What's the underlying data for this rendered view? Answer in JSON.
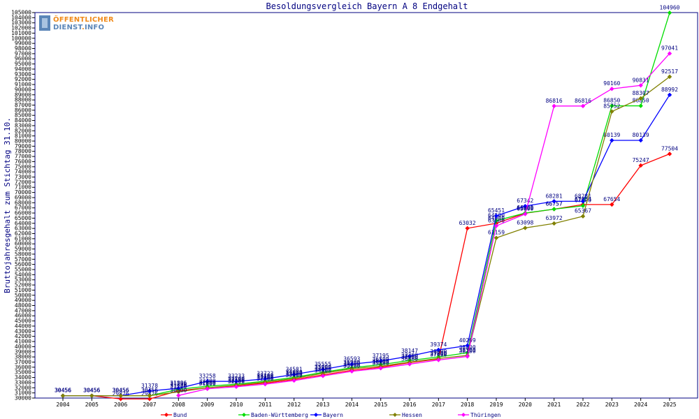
{
  "chart_data": {
    "type": "line",
    "title": "Besoldungsvergleich Bayern A 8 Endgehalt",
    "ylabel": "Bruttojahresgehalt zum Stichtag 31.10.",
    "xlabel": "",
    "ylim": [
      30000,
      105000
    ],
    "ytick_step": 1000,
    "categories": [
      "2004",
      "2005",
      "2006",
      "2007",
      "2008",
      "2009",
      "2010",
      "2011",
      "2012",
      "2013",
      "2014",
      "2015",
      "2016",
      "2017",
      "2018",
      "2019",
      "2020",
      "2021",
      "2022",
      "2023",
      "2024",
      "2025"
    ],
    "legend_position": "bottom",
    "series": [
      {
        "name": "Bund",
        "color": "#ff0000",
        "values": [
          30456,
          30456,
          29826,
          29826,
          31420,
          32000,
          32400,
          32900,
          33600,
          34500,
          35400,
          36000,
          36900,
          37600,
          63032,
          64000,
          65960,
          66757,
          67654,
          67654,
          75247,
          77504
        ],
        "labels": [
          "30456",
          "30456",
          "29826",
          "29826",
          "31420",
          "32000",
          "32400",
          "32900",
          "33600",
          "34500",
          "35400",
          "36000",
          "36900",
          "37600",
          "63032",
          "64000",
          "65960",
          "66757",
          "67654",
          "67654",
          "75247",
          "77504"
        ]
      },
      {
        "name": "Baden-Württemberg",
        "color": "#00dd00",
        "values": [
          30456,
          30456,
          30456,
          30456,
          31700,
          32300,
          32700,
          33300,
          34000,
          35000,
          35900,
          36500,
          37300,
          38000,
          38800,
          64500,
          66000,
          66757,
          67400,
          86850,
          86850,
          104960
        ],
        "labels": [
          "30456",
          "30456",
          "30456",
          "30456",
          "31700",
          "32300",
          "32700",
          "33300",
          "34000",
          "35000",
          "35900",
          "36500",
          "37300",
          "38000",
          "38800",
          "64500",
          "66000",
          "66757",
          "67400",
          "86850",
          "86850",
          "104960"
        ]
      },
      {
        "name": "Bayern",
        "color": "#0000ff",
        "values": [
          30456,
          30456,
          30456,
          31378,
          31896,
          33258,
          33233,
          33723,
          34581,
          35555,
          36593,
          37195,
          38147,
          39374,
          40209,
          65451,
          67342,
          68281,
          68281,
          80139,
          80139,
          88992
        ],
        "labels": [
          "30456",
          "30456",
          "30456",
          "31378",
          "31896",
          "33258",
          "33233",
          "33723",
          "34581",
          "35555",
          "36593",
          "37195",
          "38147",
          "39374",
          "40209",
          "65451",
          "67342",
          "68281",
          "68281",
          "80139",
          "80139",
          "88992"
        ]
      },
      {
        "name": "Hessen",
        "color": "#808000",
        "values": [
          30456,
          30456,
          30456,
          30456,
          31200,
          32000,
          32500,
          33100,
          33800,
          34800,
          35700,
          36200,
          37000,
          37700,
          38300,
          61159,
          63098,
          63972,
          65367,
          85752,
          88307,
          92517
        ],
        "labels": [
          "30456",
          "30456",
          "30456",
          "30456",
          "31200",
          "32000",
          "32500",
          "33100",
          "33800",
          "34800",
          "35700",
          "36200",
          "37000",
          "37700",
          "38300",
          "61159",
          "63098",
          "63972",
          "65367",
          "85752",
          "88307",
          "92517"
        ]
      },
      {
        "name": "Thüringen",
        "color": "#ff00ff",
        "values": [
          null,
          null,
          null,
          null,
          30500,
          31800,
          32200,
          32700,
          33400,
          34300,
          35200,
          35800,
          36600,
          37400,
          38100,
          63500,
          65800,
          86816,
          86816,
          90160,
          90831,
          97041
        ],
        "labels": [
          "",
          "",
          "",
          "",
          "30500",
          "31800",
          "32200",
          "32700",
          "33400",
          "34300",
          "35200",
          "35800",
          "36600",
          "37400",
          "38100",
          "63500",
          "65800",
          "86816",
          "86816",
          "90160",
          "90831",
          "97041"
        ]
      }
    ]
  },
  "logo": {
    "line1": "ÖFFENTLICHER",
    "line2": "DIENST",
    "line2_dot": ".",
    "line2_suffix": "INFO"
  }
}
